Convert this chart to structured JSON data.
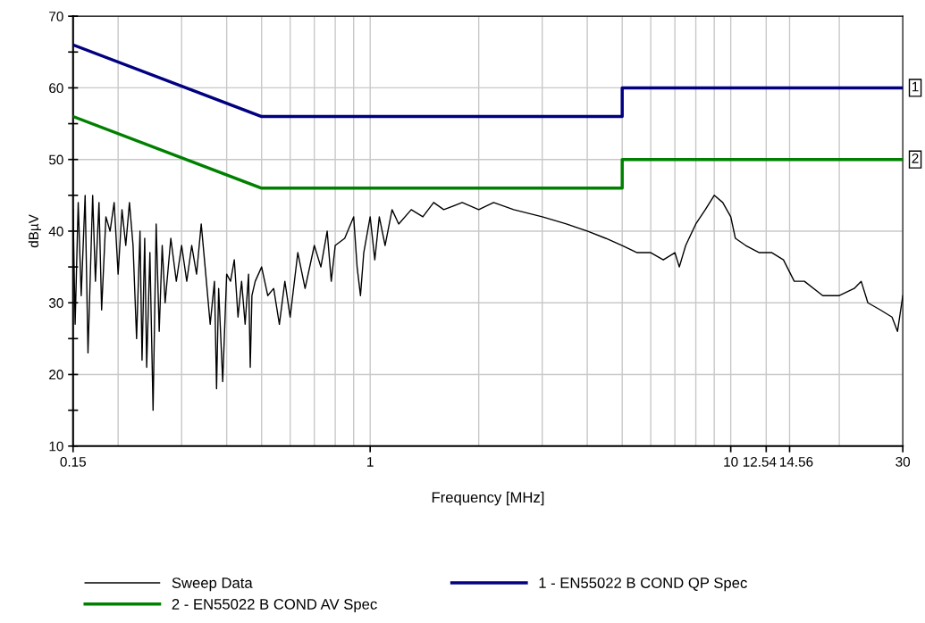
{
  "chart_data": {
    "type": "line",
    "xlabel": "Frequency [MHz]",
    "ylabel": "dBµV",
    "log": "x",
    "xlim": [
      0.15,
      30
    ],
    "xticks": [
      0.15,
      1,
      10,
      12.54,
      14.56,
      30
    ],
    "ylim": [
      10,
      70
    ],
    "yticks": [
      10,
      {
        "value": 15,
        "label": null
      },
      20,
      {
        "value": 25,
        "label": null
      },
      30,
      {
        "value": 35,
        "label": null
      },
      40,
      {
        "value": 45,
        "label": null
      },
      50,
      {
        "value": 55,
        "label": null
      },
      60,
      {
        "value": 65,
        "label": null
      },
      70
    ],
    "grid": true,
    "legend": "bottom",
    "marker": "none",
    "line_style": "solid",
    "series": [
      {
        "name": "Sweep Data",
        "color": "#000000",
        "x": [
          0.15,
          0.152,
          0.155,
          0.158,
          0.162,
          0.165,
          0.17,
          0.173,
          0.177,
          0.18,
          0.185,
          0.19,
          0.195,
          0.2,
          0.205,
          0.21,
          0.215,
          0.22,
          0.225,
          0.23,
          0.233,
          0.237,
          0.24,
          0.245,
          0.25,
          0.255,
          0.26,
          0.265,
          0.27,
          0.28,
          0.29,
          0.3,
          0.31,
          0.32,
          0.33,
          0.34,
          0.35,
          0.36,
          0.37,
          0.375,
          0.38,
          0.39,
          0.4,
          0.41,
          0.42,
          0.43,
          0.44,
          0.45,
          0.46,
          0.465,
          0.47,
          0.48,
          0.5,
          0.52,
          0.54,
          0.56,
          0.58,
          0.6,
          0.63,
          0.66,
          0.7,
          0.73,
          0.76,
          0.78,
          0.8,
          0.85,
          0.9,
          0.92,
          0.94,
          0.96,
          1.0,
          1.03,
          1.06,
          1.1,
          1.15,
          1.2,
          1.3,
          1.4,
          1.5,
          1.6,
          1.8,
          2.0,
          2.2,
          2.5,
          3,
          3.5,
          4,
          4.5,
          5,
          5.5,
          6,
          6.5,
          7,
          7.2,
          7.5,
          8,
          8.5,
          9,
          9.5,
          10,
          10.3,
          11,
          12,
          13,
          14,
          15,
          16,
          18,
          20,
          22,
          23,
          24,
          26,
          28,
          29,
          30
        ],
        "values": [
          43,
          27,
          44,
          31,
          45,
          23,
          45,
          33,
          44,
          29,
          42,
          40,
          44,
          34,
          43,
          38,
          44,
          38,
          25,
          40,
          22,
          39,
          21,
          37,
          15,
          41,
          26,
          38,
          30,
          39,
          33,
          38,
          33,
          38,
          34,
          41,
          34,
          27,
          33,
          18,
          32,
          19,
          34,
          33,
          36,
          28,
          33,
          27,
          34,
          21,
          31,
          33,
          35,
          31,
          32,
          27,
          33,
          28,
          37,
          32,
          38,
          35,
          40,
          33,
          38,
          39,
          42,
          35,
          31,
          37,
          42,
          36,
          42,
          38,
          43,
          41,
          43,
          42,
          44,
          43,
          44,
          43,
          44,
          43,
          42,
          41,
          40,
          39,
          38,
          37,
          37,
          36,
          37,
          35,
          38,
          41,
          43,
          45,
          44,
          42,
          39,
          38,
          37,
          37,
          36,
          33,
          33,
          31,
          31,
          32,
          33,
          30,
          29,
          28,
          26,
          31
        ]
      },
      {
        "name": "2 - EN55022 B COND AV Spec",
        "color": "#008000",
        "x": [
          0.15,
          0.5,
          5,
          5,
          30
        ],
        "values": [
          56,
          46,
          46,
          50,
          50
        ]
      },
      {
        "name": "1 - EN55022 B COND QP Spec",
        "color": "#000080",
        "x": [
          0.15,
          0.5,
          5,
          5,
          30
        ],
        "values": [
          66,
          56,
          56,
          60,
          60
        ]
      }
    ],
    "annotations": [
      {
        "text": "1",
        "x": 30,
        "y": 60
      },
      {
        "text": "2",
        "x": 30,
        "y": 50
      }
    ]
  }
}
